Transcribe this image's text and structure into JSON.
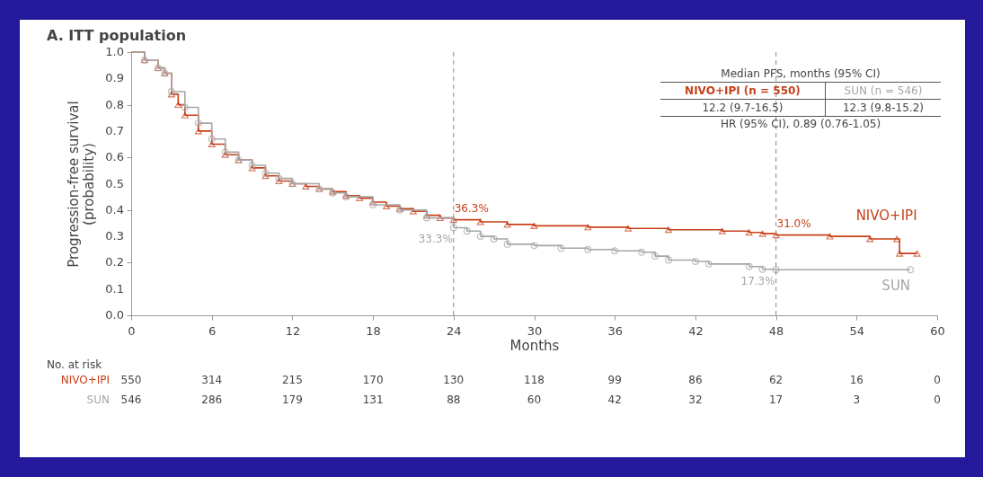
{
  "chart_data": {
    "type": "step",
    "title": "A. ITT population",
    "xlabel": "Months",
    "ylabel": "Progression-free survival\n(probability)",
    "xlim": [
      0,
      60
    ],
    "xticks": [
      0,
      6,
      12,
      18,
      24,
      30,
      36,
      42,
      48,
      54,
      60
    ],
    "ylim": [
      0,
      1
    ],
    "yticks": [
      {
        "value": 0,
        "label": "0.0"
      },
      0.1,
      0.2,
      0.3,
      0.4,
      0.5,
      0.6,
      0.7,
      0.8,
      0.9,
      {
        "value": 1,
        "label": "1.0"
      }
    ],
    "grid": false,
    "legend": false,
    "line_style": "solid",
    "series": [
      {
        "name": "NIVO+IPI",
        "color": "#c8401a",
        "marker": "triangle",
        "x": [
          0,
          1,
          2,
          2.5,
          3,
          3.5,
          4,
          5,
          6,
          7,
          8,
          9,
          10,
          11,
          12,
          13,
          14,
          15,
          16,
          17,
          18,
          19,
          20,
          21,
          22,
          23,
          24,
          26,
          28,
          30,
          34,
          37,
          40,
          44,
          46,
          47,
          48,
          52,
          55,
          57,
          57.2,
          58.5
        ],
        "values": [
          1.0,
          0.97,
          0.94,
          0.92,
          0.84,
          0.8,
          0.76,
          0.7,
          0.65,
          0.61,
          0.59,
          0.56,
          0.53,
          0.51,
          0.5,
          0.49,
          0.48,
          0.47,
          0.455,
          0.445,
          0.43,
          0.415,
          0.405,
          0.395,
          0.38,
          0.37,
          0.363,
          0.355,
          0.345,
          0.34,
          0.335,
          0.33,
          0.325,
          0.32,
          0.315,
          0.31,
          0.305,
          0.3,
          0.29,
          0.29,
          0.235,
          0.235
        ]
      },
      {
        "name": "SUN",
        "color": "#a6a6a6",
        "marker": "circle",
        "x": [
          0,
          1,
          2,
          2.5,
          3,
          4,
          5,
          6,
          7,
          8,
          9,
          10,
          11,
          12,
          14,
          15,
          16,
          18,
          20,
          22,
          24,
          25,
          26,
          27,
          28,
          30,
          32,
          34,
          36,
          38,
          39,
          40,
          42,
          43,
          46,
          47,
          48,
          58
        ],
        "values": [
          1.0,
          0.97,
          0.94,
          0.92,
          0.85,
          0.79,
          0.73,
          0.67,
          0.62,
          0.59,
          0.57,
          0.54,
          0.52,
          0.5,
          0.48,
          0.465,
          0.45,
          0.42,
          0.4,
          0.37,
          0.333,
          0.32,
          0.3,
          0.29,
          0.27,
          0.265,
          0.255,
          0.25,
          0.245,
          0.24,
          0.225,
          0.21,
          0.205,
          0.195,
          0.185,
          0.175,
          0.173,
          0.173
        ]
      }
    ],
    "ref_lines": [
      {
        "axis": "x",
        "value": 24,
        "color": "#999999",
        "line_style": "dashed"
      },
      {
        "axis": "x",
        "value": 48,
        "color": "#999999",
        "line_style": "dashed"
      }
    ],
    "annotations": [
      "Median PFS, months (95% CI)",
      "NIVO+IPI (n = 550)",
      "SUN (n = 546)",
      "12.2 (9.7-16.5)",
      "12.3 (9.8-15.2)",
      "HR (95% CI), 0.89 (0.76-1.05)",
      "36.3%",
      "33.3%",
      "31.0%",
      "17.3%",
      "No. at risk",
      "NIVO+IPI",
      "550",
      "314",
      "215",
      "170",
      "130",
      "118",
      "99",
      "86",
      "62",
      "16",
      "0",
      "SUN",
      "546",
      "286",
      "179",
      "131",
      "88",
      "60",
      "42",
      "32",
      "17",
      "3",
      "0"
    ]
  }
}
